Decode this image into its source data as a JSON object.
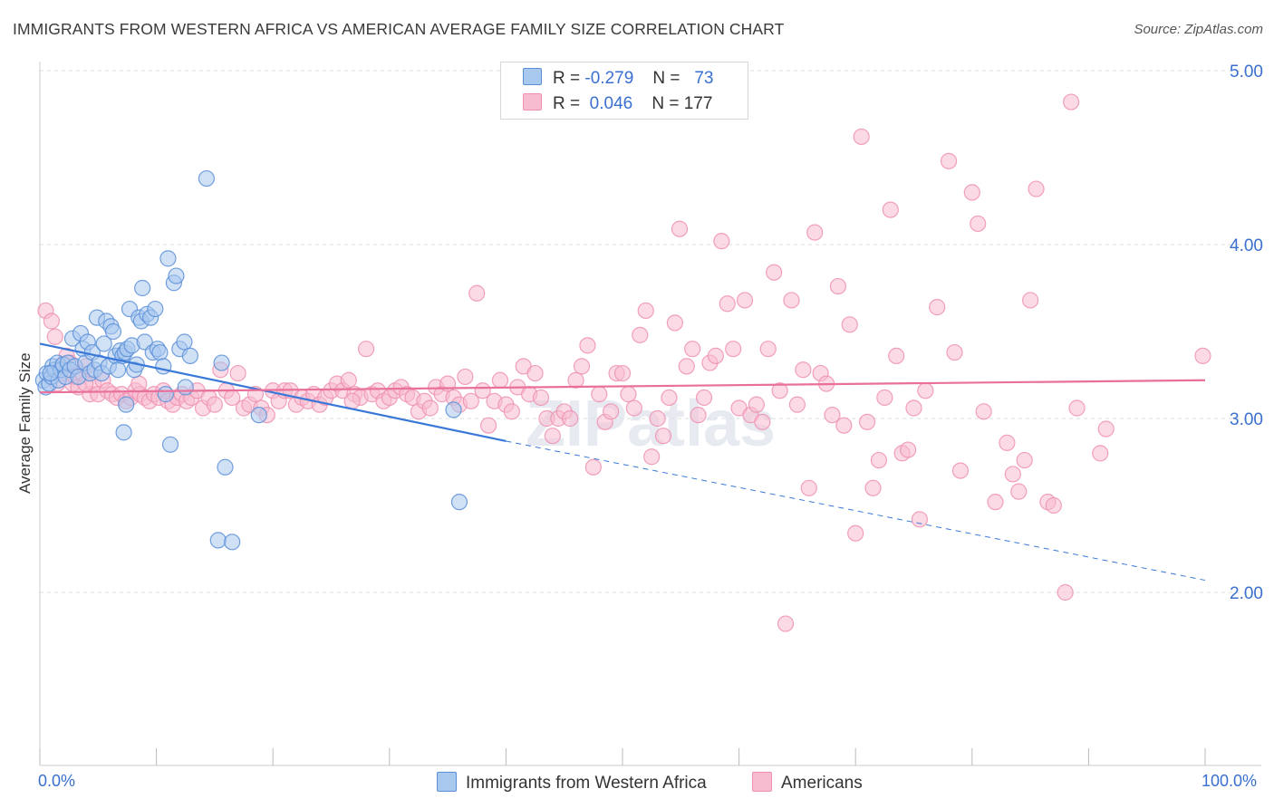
{
  "title": "IMMIGRANTS FROM WESTERN AFRICA VS AMERICAN AVERAGE FAMILY SIZE CORRELATION CHART",
  "source": "Source: ZipAtlas.com",
  "watermark": "ZIPatlas",
  "legend_top": {
    "rows": [
      {
        "r_label": "R =",
        "r_value": "-0.279",
        "n_label": "N =",
        "n_value": "73"
      },
      {
        "r_label": "R =",
        "r_value": "0.046",
        "n_label": "N = 177",
        "n_value": ""
      }
    ]
  },
  "legend_bottom": {
    "items": [
      {
        "label": "Immigrants from Western Africa"
      },
      {
        "label": "Americans"
      }
    ]
  },
  "colors": {
    "blue_fill": "#a9c8ee",
    "blue_stroke": "#5b8fd8",
    "blue_line": "#3a78d8",
    "pink_fill": "#f7bcd0",
    "pink_stroke": "#ef90b1",
    "pink_line": "#e8709a",
    "tick_label": "#3a6fd0",
    "grid": "#dedede"
  },
  "chart_data": {
    "type": "scatter",
    "title": "IMMIGRANTS FROM WESTERN AFRICA VS AMERICAN AVERAGE FAMILY SIZE CORRELATION CHART",
    "xlabel": "",
    "ylabel": "Average Family Size",
    "xlim": [
      0,
      100
    ],
    "ylim": [
      1.0,
      5.1
    ],
    "x_tick_labels": [
      "0.0%",
      "100.0%"
    ],
    "y_ticks": [
      2.0,
      3.0,
      4.0,
      5.0
    ],
    "y_tick_labels": [
      "2.00",
      "3.00",
      "4.00",
      "5.00"
    ],
    "grid": true,
    "legend_placement": "top-center",
    "series": [
      {
        "name": "Immigrants from Western Africa",
        "r": -0.279,
        "n": 73,
        "trend": {
          "x0": 0,
          "y0": 3.43,
          "x1": 40,
          "y1": 2.87,
          "dash_x1": 100,
          "dash_y1": 2.07
        },
        "points": [
          [
            0.3,
            3.22
          ],
          [
            0.5,
            3.18
          ],
          [
            0.6,
            3.26
          ],
          [
            0.8,
            3.2
          ],
          [
            1.0,
            3.24
          ],
          [
            1.1,
            3.3
          ],
          [
            1.3,
            3.28
          ],
          [
            1.5,
            3.32
          ],
          [
            1.6,
            3.22
          ],
          [
            1.8,
            3.28
          ],
          [
            2.0,
            3.31
          ],
          [
            2.2,
            3.24
          ],
          [
            2.4,
            3.32
          ],
          [
            2.6,
            3.28
          ],
          [
            2.8,
            3.46
          ],
          [
            3.0,
            3.3
          ],
          [
            3.3,
            3.24
          ],
          [
            3.5,
            3.49
          ],
          [
            3.7,
            3.4
          ],
          [
            3.9,
            3.32
          ],
          [
            4.1,
            3.44
          ],
          [
            4.3,
            3.26
          ],
          [
            4.5,
            3.38
          ],
          [
            4.7,
            3.28
          ],
          [
            4.9,
            3.58
          ],
          [
            5.1,
            3.32
          ],
          [
            5.3,
            3.26
          ],
          [
            5.5,
            3.43
          ],
          [
            5.7,
            3.56
          ],
          [
            5.9,
            3.3
          ],
          [
            6.1,
            3.53
          ],
          [
            6.3,
            3.5
          ],
          [
            6.5,
            3.36
          ],
          [
            6.7,
            3.28
          ],
          [
            6.9,
            3.39
          ],
          [
            7.1,
            3.36
          ],
          [
            7.3,
            3.38
          ],
          [
            7.5,
            3.4
          ],
          [
            7.2,
            2.92
          ],
          [
            7.4,
            3.08
          ],
          [
            7.7,
            3.63
          ],
          [
            7.9,
            3.42
          ],
          [
            8.1,
            3.28
          ],
          [
            8.3,
            3.31
          ],
          [
            8.5,
            3.58
          ],
          [
            8.7,
            3.56
          ],
          [
            8.8,
            3.75
          ],
          [
            9.0,
            3.44
          ],
          [
            9.2,
            3.6
          ],
          [
            9.5,
            3.58
          ],
          [
            9.7,
            3.38
          ],
          [
            9.9,
            3.63
          ],
          [
            10.1,
            3.4
          ],
          [
            10.3,
            3.38
          ],
          [
            10.6,
            3.3
          ],
          [
            10.8,
            3.14
          ],
          [
            11.0,
            3.92
          ],
          [
            11.2,
            2.85
          ],
          [
            11.5,
            3.78
          ],
          [
            11.7,
            3.82
          ],
          [
            12.0,
            3.4
          ],
          [
            12.4,
            3.44
          ],
          [
            12.9,
            3.36
          ],
          [
            12.5,
            3.18
          ],
          [
            14.3,
            4.38
          ],
          [
            15.9,
            2.72
          ],
          [
            15.6,
            3.32
          ],
          [
            15.3,
            2.3
          ],
          [
            16.5,
            2.29
          ],
          [
            18.8,
            3.02
          ],
          [
            35.5,
            3.05
          ],
          [
            36.0,
            2.52
          ],
          [
            0.9,
            3.26
          ]
        ]
      },
      {
        "name": "Americans",
        "r": 0.046,
        "n": 177,
        "trend": {
          "x0": 0,
          "y0": 3.15,
          "x1": 100,
          "y1": 3.22
        },
        "points": [
          [
            0.5,
            3.62
          ],
          [
            1.0,
            3.56
          ],
          [
            1.3,
            3.47
          ],
          [
            1.5,
            3.2
          ],
          [
            1.8,
            3.3
          ],
          [
            2.0,
            3.26
          ],
          [
            2.3,
            3.36
          ],
          [
            2.6,
            3.32
          ],
          [
            2.8,
            3.2
          ],
          [
            3.0,
            3.24
          ],
          [
            3.3,
            3.18
          ],
          [
            3.6,
            3.26
          ],
          [
            4.0,
            3.3
          ],
          [
            4.3,
            3.14
          ],
          [
            4.6,
            3.2
          ],
          [
            5.0,
            3.14
          ],
          [
            5.4,
            3.22
          ],
          [
            5.8,
            3.16
          ],
          [
            6.2,
            3.14
          ],
          [
            6.6,
            3.12
          ],
          [
            7.0,
            3.14
          ],
          [
            7.4,
            3.1
          ],
          [
            7.8,
            3.12
          ],
          [
            8.2,
            3.16
          ],
          [
            8.6,
            3.14
          ],
          [
            9.0,
            3.12
          ],
          [
            9.4,
            3.1
          ],
          [
            9.8,
            3.14
          ],
          [
            10.2,
            3.12
          ],
          [
            10.6,
            3.16
          ],
          [
            11.0,
            3.1
          ],
          [
            11.4,
            3.08
          ],
          [
            11.8,
            3.12
          ],
          [
            12.2,
            3.14
          ],
          [
            12.6,
            3.1
          ],
          [
            13.0,
            3.12
          ],
          [
            13.5,
            3.16
          ],
          [
            14.0,
            3.06
          ],
          [
            14.5,
            3.12
          ],
          [
            15.0,
            3.08
          ],
          [
            15.5,
            3.28
          ],
          [
            16.0,
            3.16
          ],
          [
            16.5,
            3.12
          ],
          [
            17.0,
            3.26
          ],
          [
            17.5,
            3.06
          ],
          [
            18.0,
            3.08
          ],
          [
            18.5,
            3.14
          ],
          [
            19.0,
            3.06
          ],
          [
            19.5,
            3.02
          ],
          [
            20.0,
            3.16
          ],
          [
            20.5,
            3.1
          ],
          [
            21.0,
            3.16
          ],
          [
            21.5,
            3.16
          ],
          [
            22.0,
            3.08
          ],
          [
            22.5,
            3.12
          ],
          [
            23.0,
            3.1
          ],
          [
            23.5,
            3.14
          ],
          [
            24.0,
            3.08
          ],
          [
            24.5,
            3.12
          ],
          [
            25.0,
            3.16
          ],
          [
            25.5,
            3.2
          ],
          [
            26.0,
            3.16
          ],
          [
            26.5,
            3.22
          ],
          [
            27.0,
            3.14
          ],
          [
            27.5,
            3.12
          ],
          [
            28.0,
            3.4
          ],
          [
            28.5,
            3.14
          ],
          [
            29.0,
            3.16
          ],
          [
            29.5,
            3.1
          ],
          [
            30.0,
            3.12
          ],
          [
            30.5,
            3.16
          ],
          [
            31.0,
            3.18
          ],
          [
            31.5,
            3.14
          ],
          [
            32.0,
            3.12
          ],
          [
            32.5,
            3.04
          ],
          [
            33.0,
            3.1
          ],
          [
            33.5,
            3.06
          ],
          [
            34.0,
            3.18
          ],
          [
            34.5,
            3.14
          ],
          [
            35.0,
            3.2
          ],
          [
            35.5,
            3.12
          ],
          [
            36.0,
            3.08
          ],
          [
            36.5,
            3.24
          ],
          [
            37.0,
            3.1
          ],
          [
            37.5,
            3.72
          ],
          [
            38.0,
            3.16
          ],
          [
            38.5,
            2.96
          ],
          [
            39.0,
            3.1
          ],
          [
            39.5,
            3.22
          ],
          [
            40.0,
            3.08
          ],
          [
            40.5,
            3.04
          ],
          [
            41.0,
            3.18
          ],
          [
            41.5,
            3.3
          ],
          [
            42.0,
            3.14
          ],
          [
            42.5,
            3.26
          ],
          [
            43.0,
            3.12
          ],
          [
            43.5,
            3.0
          ],
          [
            44.0,
            2.9
          ],
          [
            44.5,
            3.0
          ],
          [
            45.0,
            3.04
          ],
          [
            45.5,
            3.0
          ],
          [
            46.0,
            3.22
          ],
          [
            46.5,
            3.3
          ],
          [
            47.0,
            3.42
          ],
          [
            47.5,
            2.72
          ],
          [
            48.0,
            3.14
          ],
          [
            48.5,
            2.98
          ],
          [
            49.0,
            3.04
          ],
          [
            49.5,
            3.26
          ],
          [
            50.0,
            3.26
          ],
          [
            50.5,
            3.14
          ],
          [
            51.0,
            3.06
          ],
          [
            51.5,
            3.48
          ],
          [
            52.0,
            3.62
          ],
          [
            52.5,
            2.78
          ],
          [
            53.0,
            3.0
          ],
          [
            53.5,
            2.9
          ],
          [
            54.0,
            3.12
          ],
          [
            54.5,
            3.55
          ],
          [
            54.9,
            4.09
          ],
          [
            55.5,
            3.3
          ],
          [
            56.0,
            3.4
          ],
          [
            56.5,
            3.02
          ],
          [
            57.0,
            3.12
          ],
          [
            57.5,
            3.32
          ],
          [
            58.0,
            3.36
          ],
          [
            58.5,
            4.02
          ],
          [
            59.0,
            3.66
          ],
          [
            59.5,
            3.4
          ],
          [
            60.0,
            3.06
          ],
          [
            60.5,
            3.68
          ],
          [
            61.0,
            3.02
          ],
          [
            61.5,
            3.08
          ],
          [
            62.0,
            2.98
          ],
          [
            62.5,
            3.4
          ],
          [
            63.0,
            3.84
          ],
          [
            63.5,
            3.16
          ],
          [
            64.0,
            1.82
          ],
          [
            64.5,
            3.68
          ],
          [
            65.0,
            3.08
          ],
          [
            65.5,
            3.28
          ],
          [
            66.0,
            2.6
          ],
          [
            66.5,
            4.07
          ],
          [
            67.0,
            3.26
          ],
          [
            67.5,
            3.2
          ],
          [
            68.0,
            3.02
          ],
          [
            68.5,
            3.76
          ],
          [
            69.0,
            2.96
          ],
          [
            69.5,
            3.54
          ],
          [
            70.0,
            2.34
          ],
          [
            70.5,
            4.62
          ],
          [
            71.0,
            2.98
          ],
          [
            71.5,
            2.6
          ],
          [
            72.0,
            2.76
          ],
          [
            72.5,
            3.12
          ],
          [
            73.0,
            4.2
          ],
          [
            73.5,
            3.36
          ],
          [
            74.0,
            2.8
          ],
          [
            74.5,
            2.82
          ],
          [
            75.0,
            3.06
          ],
          [
            75.5,
            2.42
          ],
          [
            76.0,
            3.16
          ],
          [
            77.0,
            3.64
          ],
          [
            78.0,
            4.48
          ],
          [
            78.5,
            3.38
          ],
          [
            79.0,
            2.7
          ],
          [
            80.0,
            4.3
          ],
          [
            80.5,
            4.12
          ],
          [
            81.0,
            3.04
          ],
          [
            82.0,
            2.52
          ],
          [
            83.0,
            2.86
          ],
          [
            83.5,
            2.68
          ],
          [
            84.0,
            2.58
          ],
          [
            84.5,
            2.76
          ],
          [
            85.0,
            3.68
          ],
          [
            85.5,
            4.32
          ],
          [
            86.5,
            2.52
          ],
          [
            87.0,
            2.5
          ],
          [
            88.0,
            2.0
          ],
          [
            88.5,
            4.82
          ],
          [
            89.0,
            3.06
          ],
          [
            91.0,
            2.8
          ],
          [
            91.5,
            2.94
          ],
          [
            99.8,
            3.36
          ],
          [
            8.5,
            3.2
          ],
          [
            3.9,
            3.2
          ],
          [
            26.8,
            3.1
          ]
        ]
      }
    ]
  }
}
